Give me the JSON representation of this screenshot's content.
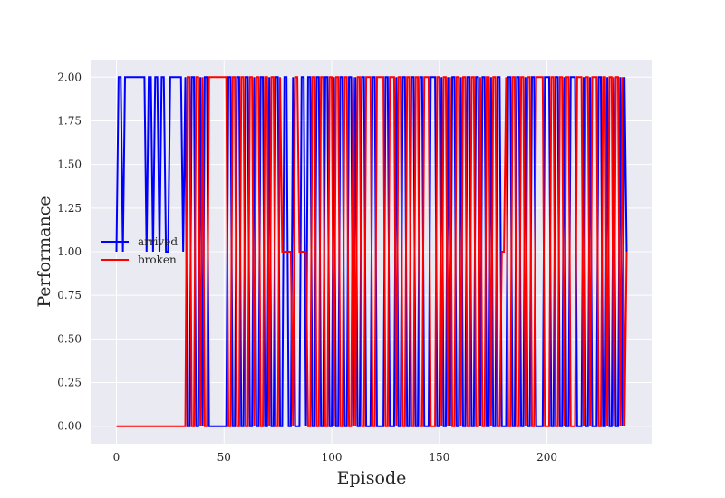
{
  "chart_data": {
    "type": "line",
    "title": "",
    "xlabel": "Episode",
    "ylabel": "Performance",
    "xlim": [
      -12,
      249
    ],
    "ylim": [
      -0.1,
      2.1
    ],
    "xticks": [
      0,
      50,
      100,
      150,
      200
    ],
    "yticks": [
      0.0,
      0.25,
      0.5,
      0.75,
      1.0,
      1.25,
      1.5,
      1.75,
      2.0
    ],
    "ytick_labels": [
      "0.00",
      "0.25",
      "0.50",
      "0.75",
      "1.00",
      "1.25",
      "1.50",
      "1.75",
      "2.00"
    ],
    "xtick_labels": [
      "0",
      "50",
      "100",
      "150",
      "200"
    ],
    "grid": true,
    "background": "#eaeaf2",
    "legend_position": "center-left",
    "series": [
      {
        "name": "arrived",
        "color": "#0000ff",
        "x": [
          0,
          1,
          2,
          3,
          4,
          5,
          6,
          7,
          8,
          9,
          10,
          11,
          12,
          13,
          14,
          15,
          16,
          17,
          18,
          19,
          20,
          21,
          22,
          23,
          24,
          25,
          26,
          27,
          28,
          29,
          30,
          31,
          32,
          33,
          34,
          35,
          36,
          37,
          38,
          39,
          40,
          41,
          42,
          43,
          44,
          45,
          46,
          47,
          48,
          49,
          50,
          51,
          52,
          53,
          54,
          55,
          56,
          57,
          58,
          59,
          60,
          61,
          62,
          63,
          64,
          65,
          66,
          67,
          68,
          69,
          70,
          71,
          72,
          73,
          74,
          75,
          76,
          77,
          78,
          79,
          80,
          81,
          82,
          83,
          84,
          85,
          86,
          87,
          88,
          89,
          90,
          91,
          92,
          93,
          94,
          95,
          96,
          97,
          98,
          99,
          100,
          101,
          102,
          103,
          104,
          105,
          106,
          107,
          108,
          109,
          110,
          111,
          112,
          113,
          114,
          115,
          116,
          117,
          118,
          119,
          120,
          121,
          122,
          123,
          124,
          125,
          126,
          127,
          128,
          129,
          130,
          131,
          132,
          133,
          134,
          135,
          136,
          137,
          138,
          139,
          140,
          141,
          142,
          143,
          144,
          145,
          146,
          147,
          148,
          149,
          150,
          151,
          152,
          153,
          154,
          155,
          156,
          157,
          158,
          159,
          160,
          161,
          162,
          163,
          164,
          165,
          166,
          167,
          168,
          169,
          170,
          171,
          172,
          173,
          174,
          175,
          176,
          177,
          178,
          179,
          180,
          181,
          182,
          183,
          184,
          185,
          186,
          187,
          188,
          189,
          190,
          191,
          192,
          193,
          194,
          195,
          196,
          197,
          198,
          199,
          200,
          201,
          202,
          203,
          204,
          205,
          206,
          207,
          208,
          209,
          210,
          211,
          212,
          213,
          214,
          215,
          216,
          217,
          218,
          219,
          220,
          221,
          222,
          223,
          224,
          225,
          226,
          227,
          228,
          229,
          230,
          231,
          232,
          233,
          234,
          235,
          236,
          237
        ],
        "y": [
          1,
          2,
          2,
          1,
          2,
          2,
          2,
          2,
          2,
          2,
          2,
          2,
          2,
          2,
          1,
          2,
          2,
          1,
          2,
          2,
          1,
          2,
          2,
          1,
          1,
          2,
          2,
          2,
          2,
          2,
          2,
          1,
          2,
          0,
          0,
          2,
          2,
          0,
          0,
          2,
          0,
          2,
          2,
          0,
          0,
          0,
          0,
          0,
          0,
          0,
          0,
          0,
          2,
          2,
          0,
          0,
          2,
          2,
          0,
          0,
          2,
          2,
          0,
          0,
          2,
          0,
          0,
          2,
          2,
          0,
          0,
          2,
          0,
          0,
          2,
          2,
          0,
          0,
          2,
          2,
          0,
          0,
          2,
          0,
          0,
          0,
          2,
          2,
          0,
          2,
          2,
          0,
          0,
          2,
          2,
          0,
          0,
          2,
          2,
          0,
          0,
          2,
          0,
          0,
          2,
          2,
          0,
          0,
          2,
          2,
          0,
          2,
          0,
          0,
          2,
          2,
          0,
          0,
          0,
          2,
          2,
          0,
          0,
          0,
          0,
          2,
          2,
          0,
          0,
          0,
          2,
          0,
          0,
          2,
          2,
          0,
          0,
          2,
          2,
          0,
          0,
          2,
          2,
          0,
          0,
          0,
          2,
          2,
          2,
          0,
          0,
          2,
          0,
          0,
          2,
          0,
          2,
          2,
          0,
          0,
          2,
          0,
          0,
          2,
          2,
          0,
          0,
          2,
          2,
          0,
          2,
          2,
          0,
          0,
          2,
          0,
          0,
          2,
          2,
          0,
          0,
          0,
          2,
          2,
          0,
          0,
          2,
          2,
          0,
          0,
          2,
          0,
          0,
          2,
          2,
          0,
          0,
          0,
          0,
          2,
          2,
          2,
          0,
          0,
          2,
          2,
          0,
          0,
          2,
          0,
          0,
          2,
          2,
          2,
          0,
          0,
          0,
          2,
          0,
          0,
          2,
          0,
          0,
          0,
          2,
          2,
          0,
          0,
          2,
          0,
          0,
          2,
          0,
          0,
          2,
          0,
          2,
          1
        ]
      },
      {
        "name": "broken",
        "color": "#ff0000",
        "x": [
          0,
          1,
          2,
          3,
          4,
          5,
          6,
          7,
          8,
          9,
          10,
          11,
          12,
          13,
          14,
          15,
          16,
          17,
          18,
          19,
          20,
          21,
          22,
          23,
          24,
          25,
          26,
          27,
          28,
          29,
          30,
          31,
          32,
          33,
          34,
          35,
          36,
          37,
          38,
          39,
          40,
          41,
          42,
          43,
          44,
          45,
          46,
          47,
          48,
          49,
          50,
          51,
          52,
          53,
          54,
          55,
          56,
          57,
          58,
          59,
          60,
          61,
          62,
          63,
          64,
          65,
          66,
          67,
          68,
          69,
          70,
          71,
          72,
          73,
          74,
          75,
          76,
          77,
          78,
          79,
          80,
          81,
          82,
          83,
          84,
          85,
          86,
          87,
          88,
          89,
          90,
          91,
          92,
          93,
          94,
          95,
          96,
          97,
          98,
          99,
          100,
          101,
          102,
          103,
          104,
          105,
          106,
          107,
          108,
          109,
          110,
          111,
          112,
          113,
          114,
          115,
          116,
          117,
          118,
          119,
          120,
          121,
          122,
          123,
          124,
          125,
          126,
          127,
          128,
          129,
          130,
          131,
          132,
          133,
          134,
          135,
          136,
          137,
          138,
          139,
          140,
          141,
          142,
          143,
          144,
          145,
          146,
          147,
          148,
          149,
          150,
          151,
          152,
          153,
          154,
          155,
          156,
          157,
          158,
          159,
          160,
          161,
          162,
          163,
          164,
          165,
          166,
          167,
          168,
          169,
          170,
          171,
          172,
          173,
          174,
          175,
          176,
          177,
          178,
          179,
          180,
          181,
          182,
          183,
          184,
          185,
          186,
          187,
          188,
          189,
          190,
          191,
          192,
          193,
          194,
          195,
          196,
          197,
          198,
          199,
          200,
          201,
          202,
          203,
          204,
          205,
          206,
          207,
          208,
          209,
          210,
          211,
          212,
          213,
          214,
          215,
          216,
          217,
          218,
          219,
          220,
          221,
          222,
          223,
          224,
          225,
          226,
          227,
          228,
          229,
          230,
          231,
          232,
          233,
          234,
          235,
          236,
          237
        ],
        "y": [
          0,
          0,
          0,
          0,
          0,
          0,
          0,
          0,
          0,
          0,
          0,
          0,
          0,
          0,
          0,
          0,
          0,
          0,
          0,
          0,
          0,
          0,
          0,
          0,
          0,
          0,
          0,
          0,
          0,
          0,
          0,
          0,
          0,
          2,
          2,
          0,
          0,
          2,
          2,
          0,
          2,
          0,
          0,
          2,
          2,
          2,
          2,
          2,
          2,
          2,
          2,
          2,
          0,
          0,
          2,
          2,
          0,
          0,
          2,
          2,
          0,
          0,
          2,
          2,
          0,
          2,
          2,
          0,
          0,
          2,
          2,
          0,
          2,
          2,
          0,
          0,
          2,
          1,
          1,
          1,
          1,
          1,
          0,
          2,
          2,
          1,
          1,
          1,
          1,
          0,
          0,
          2,
          2,
          0,
          0,
          2,
          2,
          0,
          0,
          2,
          2,
          0,
          2,
          2,
          0,
          0,
          2,
          2,
          0,
          0,
          2,
          0,
          2,
          2,
          0,
          0,
          2,
          2,
          2,
          0,
          0,
          2,
          2,
          2,
          2,
          0,
          0,
          2,
          2,
          2,
          0,
          2,
          2,
          0,
          0,
          2,
          2,
          0,
          0,
          2,
          2,
          0,
          0,
          2,
          2,
          2,
          0,
          0,
          0,
          2,
          2,
          0,
          2,
          2,
          0,
          2,
          0,
          0,
          2,
          2,
          0,
          2,
          2,
          0,
          0,
          2,
          2,
          0,
          0,
          2,
          0,
          0,
          2,
          2,
          0,
          2,
          2,
          0,
          0,
          1,
          1,
          2,
          0,
          0,
          2,
          2,
          0,
          0,
          2,
          2,
          0,
          2,
          2,
          0,
          0,
          2,
          2,
          2,
          2,
          0,
          0,
          0,
          2,
          2,
          0,
          0,
          2,
          2,
          0,
          2,
          2,
          0,
          0,
          0,
          2,
          2,
          2,
          0,
          2,
          2,
          0,
          2,
          2,
          2,
          0,
          0,
          2,
          2,
          0,
          2,
          2,
          0,
          2,
          2,
          0,
          2,
          0,
          1
        ]
      }
    ]
  }
}
